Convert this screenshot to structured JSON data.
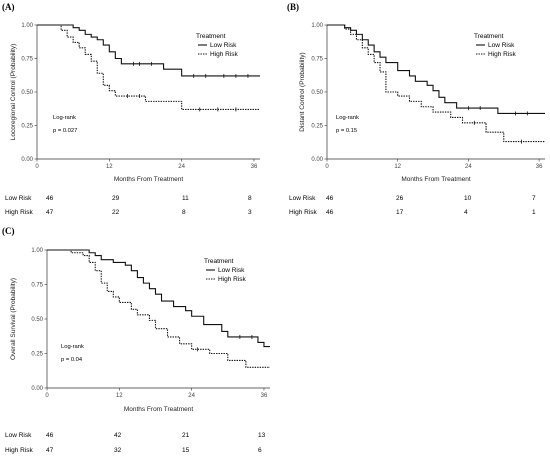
{
  "chart_data": [
    {
      "type": "line",
      "chart_subtype": "kaplan-meier",
      "panel_label": "(A)",
      "xlabel": "Months From Treatment",
      "ylabel": "Locoregional Control (Probability)",
      "xlim": [
        0,
        37
      ],
      "ylim": [
        0,
        1
      ],
      "x_ticks": [
        0,
        12,
        24,
        36
      ],
      "y_ticks": [
        "0.00",
        "0.25",
        "0.50",
        "0.75",
        "1.00"
      ],
      "legend_title": "Treatment",
      "legend_position": "top-right",
      "grid": false,
      "annotations": [
        "Log-rank",
        "p = 0.027"
      ],
      "series": [
        {
          "name": "Low Risk",
          "line_style": "solid",
          "points": [
            [
              0,
              1
            ],
            [
              6,
              1
            ],
            [
              6,
              0.98
            ],
            [
              7,
              0.98
            ],
            [
              7,
              0.96
            ],
            [
              8,
              0.96
            ],
            [
              8,
              0.93
            ],
            [
              9,
              0.93
            ],
            [
              9,
              0.91
            ],
            [
              10,
              0.91
            ],
            [
              10,
              0.89
            ],
            [
              11,
              0.89
            ],
            [
              11,
              0.85
            ],
            [
              12,
              0.85
            ],
            [
              12,
              0.8
            ],
            [
              13,
              0.8
            ],
            [
              13,
              0.75
            ],
            [
              14,
              0.75
            ],
            [
              14,
              0.71
            ],
            [
              21,
              0.71
            ],
            [
              21,
              0.67
            ],
            [
              24,
              0.67
            ],
            [
              24,
              0.62
            ],
            [
              37,
              0.62
            ]
          ],
          "censor_x": [
            16,
            17,
            19,
            26,
            28,
            31,
            33,
            35
          ]
        },
        {
          "name": "High Risk",
          "line_style": "dotted",
          "points": [
            [
              0,
              1
            ],
            [
              4,
              1
            ],
            [
              4,
              0.96
            ],
            [
              5,
              0.96
            ],
            [
              5,
              0.91
            ],
            [
              6,
              0.91
            ],
            [
              6,
              0.87
            ],
            [
              7,
              0.87
            ],
            [
              7,
              0.83
            ],
            [
              8,
              0.83
            ],
            [
              8,
              0.78
            ],
            [
              9,
              0.78
            ],
            [
              9,
              0.73
            ],
            [
              10,
              0.73
            ],
            [
              10,
              0.64
            ],
            [
              11,
              0.64
            ],
            [
              11,
              0.55
            ],
            [
              12,
              0.55
            ],
            [
              12,
              0.51
            ],
            [
              13,
              0.51
            ],
            [
              13,
              0.47
            ],
            [
              18,
              0.47
            ],
            [
              18,
              0.43
            ],
            [
              24,
              0.43
            ],
            [
              24,
              0.37
            ],
            [
              37,
              0.37
            ]
          ],
          "censor_x": [
            15,
            17,
            27,
            30,
            33
          ]
        }
      ],
      "risk_table": {
        "times": [
          0,
          12,
          24,
          36
        ],
        "rows": [
          {
            "label": "Low Risk",
            "values": [
              "46",
              "29",
              "11",
              "8"
            ]
          },
          {
            "label": "High Risk",
            "values": [
              "47",
              "22",
              "8",
              "3"
            ]
          }
        ]
      }
    },
    {
      "type": "line",
      "chart_subtype": "kaplan-meier",
      "panel_label": "(B)",
      "xlabel": "Months From Treatment",
      "ylabel": "Distant Control (Probability)",
      "xlim": [
        0,
        37
      ],
      "ylim": [
        0,
        1
      ],
      "x_ticks": [
        0,
        12,
        24,
        36
      ],
      "y_ticks": [
        "0.00",
        "0.25",
        "0.50",
        "0.75",
        "1.00"
      ],
      "legend_title": "Treatment",
      "legend_position": "top-right",
      "grid": false,
      "annotations": [
        "Log-rank",
        "p = 0.15"
      ],
      "series": [
        {
          "name": "Low Risk",
          "line_style": "solid",
          "points": [
            [
              0,
              1
            ],
            [
              3,
              1
            ],
            [
              3,
              0.98
            ],
            [
              4,
              0.98
            ],
            [
              4,
              0.96
            ],
            [
              5,
              0.96
            ],
            [
              5,
              0.93
            ],
            [
              6,
              0.93
            ],
            [
              6,
              0.89
            ],
            [
              7,
              0.89
            ],
            [
              7,
              0.85
            ],
            [
              8,
              0.85
            ],
            [
              8,
              0.8
            ],
            [
              9,
              0.8
            ],
            [
              9,
              0.76
            ],
            [
              10,
              0.76
            ],
            [
              10,
              0.72
            ],
            [
              12,
              0.72
            ],
            [
              12,
              0.66
            ],
            [
              14,
              0.66
            ],
            [
              14,
              0.62
            ],
            [
              15,
              0.62
            ],
            [
              15,
              0.58
            ],
            [
              17,
              0.58
            ],
            [
              17,
              0.55
            ],
            [
              18,
              0.55
            ],
            [
              18,
              0.51
            ],
            [
              19,
              0.51
            ],
            [
              19,
              0.46
            ],
            [
              20,
              0.46
            ],
            [
              20,
              0.42
            ],
            [
              22,
              0.42
            ],
            [
              22,
              0.38
            ],
            [
              29,
              0.38
            ],
            [
              29,
              0.34
            ],
            [
              37,
              0.34
            ]
          ],
          "censor_x": [
            24,
            26,
            32,
            34
          ]
        },
        {
          "name": "High Risk",
          "line_style": "dotted",
          "points": [
            [
              0,
              1
            ],
            [
              3,
              1
            ],
            [
              3,
              0.97
            ],
            [
              4,
              0.97
            ],
            [
              4,
              0.93
            ],
            [
              5,
              0.93
            ],
            [
              5,
              0.89
            ],
            [
              6,
              0.89
            ],
            [
              6,
              0.83
            ],
            [
              7,
              0.83
            ],
            [
              7,
              0.78
            ],
            [
              8,
              0.78
            ],
            [
              8,
              0.72
            ],
            [
              9,
              0.72
            ],
            [
              9,
              0.65
            ],
            [
              10,
              0.65
            ],
            [
              10,
              0.5
            ],
            [
              12,
              0.5
            ],
            [
              12,
              0.47
            ],
            [
              14,
              0.47
            ],
            [
              14,
              0.43
            ],
            [
              16,
              0.43
            ],
            [
              16,
              0.39
            ],
            [
              18,
              0.39
            ],
            [
              18,
              0.35
            ],
            [
              21,
              0.35
            ],
            [
              21,
              0.31
            ],
            [
              23,
              0.31
            ],
            [
              23,
              0.27
            ],
            [
              27,
              0.27
            ],
            [
              27,
              0.2
            ],
            [
              30,
              0.2
            ],
            [
              30,
              0.13
            ],
            [
              37,
              0.13
            ]
          ],
          "censor_x": [
            25,
            33
          ]
        }
      ],
      "risk_table": {
        "times": [
          0,
          12,
          24,
          36
        ],
        "rows": [
          {
            "label": "Low Risk",
            "values": [
              "46",
              "26",
              "10",
              "7"
            ]
          },
          {
            "label": "High Risk",
            "values": [
              "46",
              "17",
              "4",
              "1"
            ]
          }
        ]
      }
    },
    {
      "type": "line",
      "chart_subtype": "kaplan-meier",
      "panel_label": "(C)",
      "xlabel": "Months From Treatment",
      "ylabel": "Overall Survival (Probability)",
      "xlim": [
        0,
        37
      ],
      "ylim": [
        0,
        1
      ],
      "x_ticks": [
        0,
        12,
        24,
        36
      ],
      "y_ticks": [
        "0.00",
        "0.25",
        "0.50",
        "0.75",
        "1.00"
      ],
      "legend_title": "Treatment",
      "legend_position": "top-right",
      "grid": false,
      "annotations": [
        "Log-rank",
        "p = 0.04"
      ],
      "series": [
        {
          "name": "Low Risk",
          "line_style": "solid",
          "points": [
            [
              0,
              1
            ],
            [
              7,
              1
            ],
            [
              7,
              0.98
            ],
            [
              8,
              0.98
            ],
            [
              8,
              0.96
            ],
            [
              9,
              0.96
            ],
            [
              9,
              0.93
            ],
            [
              11,
              0.93
            ],
            [
              11,
              0.91
            ],
            [
              13,
              0.91
            ],
            [
              13,
              0.89
            ],
            [
              14,
              0.89
            ],
            [
              14,
              0.85
            ],
            [
              15,
              0.85
            ],
            [
              15,
              0.8
            ],
            [
              16,
              0.8
            ],
            [
              16,
              0.76
            ],
            [
              17,
              0.76
            ],
            [
              17,
              0.72
            ],
            [
              18,
              0.72
            ],
            [
              18,
              0.68
            ],
            [
              19,
              0.68
            ],
            [
              19,
              0.63
            ],
            [
              21,
              0.63
            ],
            [
              21,
              0.59
            ],
            [
              23,
              0.59
            ],
            [
              23,
              0.56
            ],
            [
              24,
              0.56
            ],
            [
              24,
              0.52
            ],
            [
              26,
              0.52
            ],
            [
              26,
              0.46
            ],
            [
              29,
              0.46
            ],
            [
              29,
              0.41
            ],
            [
              30,
              0.41
            ],
            [
              30,
              0.37
            ],
            [
              35,
              0.37
            ],
            [
              35,
              0.33
            ],
            [
              36,
              0.33
            ],
            [
              36,
              0.3
            ],
            [
              37,
              0.3
            ]
          ],
          "censor_x": [
            32,
            34
          ]
        },
        {
          "name": "High Risk",
          "line_style": "dotted",
          "points": [
            [
              0,
              1
            ],
            [
              4,
              1
            ],
            [
              4,
              0.98
            ],
            [
              6,
              0.98
            ],
            [
              6,
              0.96
            ],
            [
              7,
              0.96
            ],
            [
              7,
              0.91
            ],
            [
              8,
              0.91
            ],
            [
              8,
              0.85
            ],
            [
              9,
              0.85
            ],
            [
              9,
              0.76
            ],
            [
              10,
              0.76
            ],
            [
              10,
              0.7
            ],
            [
              11,
              0.7
            ],
            [
              11,
              0.66
            ],
            [
              12,
              0.66
            ],
            [
              12,
              0.62
            ],
            [
              14,
              0.62
            ],
            [
              14,
              0.57
            ],
            [
              15,
              0.57
            ],
            [
              15,
              0.53
            ],
            [
              17,
              0.53
            ],
            [
              17,
              0.49
            ],
            [
              18,
              0.49
            ],
            [
              18,
              0.43
            ],
            [
              20,
              0.43
            ],
            [
              20,
              0.37
            ],
            [
              22,
              0.37
            ],
            [
              22,
              0.32
            ],
            [
              24,
              0.32
            ],
            [
              24,
              0.28
            ],
            [
              27,
              0.28
            ],
            [
              27,
              0.25
            ],
            [
              30,
              0.25
            ],
            [
              30,
              0.2
            ],
            [
              33,
              0.2
            ],
            [
              33,
              0.15
            ],
            [
              37,
              0.15
            ]
          ],
          "censor_x": [
            25
          ]
        }
      ],
      "risk_table": {
        "times": [
          0,
          12,
          24,
          36
        ],
        "rows": [
          {
            "label": "Low Risk",
            "values": [
              "46",
              "42",
              "21",
              "13"
            ]
          },
          {
            "label": "High Risk",
            "values": [
              "47",
              "32",
              "15",
              "6"
            ]
          }
        ]
      }
    }
  ]
}
